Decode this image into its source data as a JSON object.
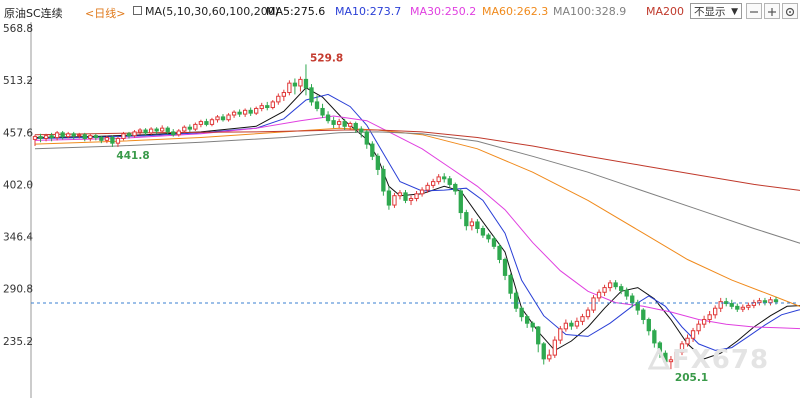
{
  "header": {
    "title": "原油SC连续",
    "period": "<日线>",
    "ma_params": "MA(5,10,30,60,100,200)",
    "ma_values": [
      {
        "label": "MA5:275.6",
        "color": "#111111"
      },
      {
        "label": "MA10:273.7",
        "color": "#2a3fd6"
      },
      {
        "label": "MA30:250.2",
        "color": "#e040e0"
      },
      {
        "label": "MA60:262.3",
        "color": "#f08a1c"
      },
      {
        "label": "MA100:328.9",
        "color": "#808080"
      },
      {
        "label": "MA200",
        "color": "#c0392b"
      }
    ],
    "hide_label": "不显示"
  },
  "watermark": "FX678",
  "chart_data": {
    "type": "candlestick",
    "y_ticks": [
      "568.8",
      "513.2",
      "457.6",
      "402.0",
      "346.4",
      "290.8",
      "235.2"
    ],
    "ylim": [
      179.6,
      568.8
    ],
    "annotations": [
      {
        "text": "529.8",
        "value": 529.8,
        "kind": "high"
      },
      {
        "text": "441.8",
        "value": 441.8,
        "kind": "low"
      },
      {
        "text": "205.1",
        "value": 205.1,
        "kind": "low"
      }
    ],
    "current_price_line": 275.6,
    "colors": {
      "up": "#e03a3a",
      "down": "#2fa84f",
      "axis": "#333333",
      "current_line": "#3a7fd0"
    },
    "candles": [
      [
        450,
        453,
        443,
        455
      ],
      [
        453,
        451,
        447,
        456
      ],
      [
        451,
        454,
        448,
        456
      ],
      [
        454,
        452,
        448,
        457
      ],
      [
        452,
        457,
        449,
        459
      ],
      [
        457,
        453,
        450,
        459
      ],
      [
        453,
        456,
        451,
        458
      ],
      [
        456,
        454,
        450,
        458
      ],
      [
        454,
        455,
        451,
        457
      ],
      [
        455,
        451,
        448,
        457
      ],
      [
        451,
        454,
        448,
        456
      ],
      [
        454,
        452,
        449,
        456
      ],
      [
        452,
        449,
        446,
        454
      ],
      [
        449,
        452,
        446,
        454
      ],
      [
        452,
        446,
        442,
        454
      ],
      [
        446,
        451,
        442,
        453
      ],
      [
        451,
        456,
        449,
        458
      ],
      [
        456,
        454,
        451,
        458
      ],
      [
        454,
        458,
        452,
        460
      ],
      [
        458,
        460,
        455,
        462
      ],
      [
        460,
        457,
        454,
        462
      ],
      [
        457,
        461,
        455,
        463
      ],
      [
        461,
        459,
        456,
        463
      ],
      [
        459,
        462,
        457,
        465
      ],
      [
        462,
        458,
        455,
        464
      ],
      [
        458,
        455,
        453,
        461
      ],
      [
        455,
        459,
        453,
        461
      ],
      [
        459,
        463,
        457,
        465
      ],
      [
        463,
        461,
        458,
        466
      ],
      [
        461,
        466,
        459,
        468
      ],
      [
        466,
        469,
        463,
        471
      ],
      [
        469,
        466,
        464,
        472
      ],
      [
        466,
        471,
        464,
        473
      ],
      [
        471,
        474,
        468,
        476
      ],
      [
        474,
        471,
        469,
        477
      ],
      [
        471,
        476,
        469,
        478
      ],
      [
        476,
        479,
        473,
        481
      ],
      [
        479,
        477,
        474,
        482
      ],
      [
        477,
        481,
        474,
        483
      ],
      [
        481,
        478,
        475,
        484
      ],
      [
        478,
        483,
        476,
        485
      ],
      [
        483,
        486,
        480,
        489
      ],
      [
        486,
        484,
        481,
        490
      ],
      [
        484,
        490,
        482,
        492
      ],
      [
        490,
        496,
        487,
        499
      ],
      [
        496,
        500,
        491,
        503
      ],
      [
        500,
        510,
        497,
        513
      ],
      [
        510,
        507,
        498,
        515
      ],
      [
        507,
        514,
        501,
        517
      ],
      [
        514,
        505,
        497,
        530
      ],
      [
        505,
        490,
        486,
        509
      ],
      [
        490,
        483,
        480,
        497
      ],
      [
        483,
        476,
        473,
        488
      ],
      [
        476,
        470,
        467,
        480
      ],
      [
        470,
        466,
        462,
        474
      ],
      [
        466,
        469,
        462,
        472
      ],
      [
        469,
        464,
        460,
        472
      ],
      [
        464,
        467,
        460,
        469
      ],
      [
        467,
        461,
        457,
        469
      ],
      [
        461,
        458,
        452,
        464
      ],
      [
        458,
        445,
        440,
        460
      ],
      [
        445,
        432,
        428,
        448
      ],
      [
        432,
        418,
        412,
        435
      ],
      [
        418,
        395,
        390,
        422
      ],
      [
        395,
        380,
        375,
        400
      ],
      [
        380,
        390,
        377,
        393
      ],
      [
        390,
        393,
        386,
        396
      ],
      [
        393,
        385,
        382,
        396
      ],
      [
        385,
        387,
        380,
        390
      ],
      [
        387,
        392,
        384,
        395
      ],
      [
        392,
        396,
        389,
        399
      ],
      [
        396,
        401,
        393,
        404
      ],
      [
        401,
        405,
        398,
        408
      ],
      [
        405,
        410,
        402,
        413
      ],
      [
        410,
        408,
        404,
        414
      ],
      [
        408,
        402,
        399,
        411
      ],
      [
        402,
        395,
        391,
        404
      ],
      [
        395,
        372,
        365,
        397
      ],
      [
        372,
        358,
        353,
        375
      ],
      [
        358,
        362,
        353,
        366
      ],
      [
        362,
        355,
        350,
        365
      ],
      [
        355,
        348,
        345,
        358
      ],
      [
        348,
        344,
        340,
        350
      ],
      [
        344,
        336,
        333,
        347
      ],
      [
        336,
        322,
        318,
        339
      ],
      [
        322,
        305,
        300,
        324
      ],
      [
        305,
        286,
        280,
        307
      ],
      [
        286,
        270,
        266,
        289
      ],
      [
        270,
        261,
        256,
        272
      ],
      [
        261,
        254,
        249,
        263
      ],
      [
        254,
        250,
        245,
        256
      ],
      [
        250,
        232,
        223,
        251
      ],
      [
        232,
        216,
        210,
        234
      ],
      [
        216,
        220,
        213,
        226
      ],
      [
        220,
        236,
        217,
        240
      ],
      [
        236,
        248,
        232,
        251
      ],
      [
        248,
        254,
        245,
        258
      ],
      [
        254,
        251,
        247,
        257
      ],
      [
        251,
        256,
        248,
        260
      ],
      [
        256,
        261,
        252,
        264
      ],
      [
        261,
        268,
        258,
        271
      ],
      [
        268,
        281,
        265,
        284
      ],
      [
        281,
        287,
        277,
        290
      ],
      [
        287,
        292,
        283,
        295
      ],
      [
        292,
        297,
        288,
        300
      ],
      [
        297,
        293,
        290,
        300
      ],
      [
        293,
        289,
        285,
        296
      ],
      [
        289,
        283,
        279,
        292
      ],
      [
        283,
        276,
        271,
        286
      ],
      [
        276,
        268,
        263,
        279
      ],
      [
        268,
        258,
        253,
        270
      ],
      [
        258,
        246,
        241,
        260
      ],
      [
        246,
        233,
        228,
        248
      ],
      [
        233,
        222,
        217,
        235
      ],
      [
        222,
        213,
        209,
        225
      ],
      [
        213,
        215,
        205,
        219
      ],
      [
        215,
        223,
        211,
        226
      ],
      [
        223,
        232,
        220,
        235
      ],
      [
        232,
        238,
        229,
        242
      ],
      [
        238,
        246,
        234,
        249
      ],
      [
        246,
        253,
        242,
        257
      ],
      [
        253,
        258,
        249,
        262
      ],
      [
        258,
        263,
        254,
        267
      ],
      [
        263,
        270,
        259,
        273
      ],
      [
        270,
        277,
        266,
        281
      ],
      [
        277,
        275,
        272,
        281
      ],
      [
        275,
        272,
        269,
        279
      ],
      [
        272,
        269,
        266,
        275
      ],
      [
        269,
        271,
        266,
        274
      ],
      [
        271,
        273,
        268,
        276
      ],
      [
        273,
        276,
        270,
        279
      ],
      [
        276,
        278,
        273,
        281
      ],
      [
        278,
        276,
        273,
        281
      ],
      [
        276,
        279,
        273,
        282
      ],
      [
        279,
        277,
        274,
        282
      ]
    ],
    "ma_lines": [
      {
        "name": "MA5",
        "color": "#111111",
        "points": [
          [
            0,
            452
          ],
          [
            10,
            453
          ],
          [
            20,
            455
          ],
          [
            30,
            458
          ],
          [
            40,
            464
          ],
          [
            45,
            480
          ],
          [
            49,
            505
          ],
          [
            52,
            495
          ],
          [
            56,
            470
          ],
          [
            60,
            450
          ],
          [
            62,
            430
          ],
          [
            64,
            400
          ],
          [
            66,
            390
          ],
          [
            70,
            392
          ],
          [
            74,
            400
          ],
          [
            77,
            395
          ],
          [
            80,
            370
          ],
          [
            85,
            330
          ],
          [
            88,
            270
          ],
          [
            91,
            245
          ],
          [
            94,
            225
          ],
          [
            97,
            235
          ],
          [
            100,
            250
          ],
          [
            103,
            270
          ],
          [
            106,
            288
          ],
          [
            109,
            292
          ],
          [
            112,
            280
          ],
          [
            115,
            258
          ],
          [
            118,
            232
          ],
          [
            121,
            216
          ],
          [
            124,
            222
          ],
          [
            127,
            235
          ],
          [
            130,
            250
          ],
          [
            133,
            262
          ],
          [
            136,
            272
          ],
          [
            139,
            273
          ],
          [
            144,
            276
          ]
        ]
      },
      {
        "name": "MA10",
        "color": "#2a3fd6",
        "points": [
          [
            0,
            451
          ],
          [
            10,
            452
          ],
          [
            20,
            454
          ],
          [
            30,
            457
          ],
          [
            40,
            462
          ],
          [
            45,
            472
          ],
          [
            49,
            492
          ],
          [
            53,
            498
          ],
          [
            57,
            485
          ],
          [
            60,
            465
          ],
          [
            63,
            435
          ],
          [
            66,
            405
          ],
          [
            70,
            395
          ],
          [
            74,
            396
          ],
          [
            78,
            398
          ],
          [
            81,
            385
          ],
          [
            85,
            350
          ],
          [
            88,
            300
          ],
          [
            92,
            262
          ],
          [
            96,
            242
          ],
          [
            100,
            240
          ],
          [
            104,
            254
          ],
          [
            108,
            272
          ],
          [
            111,
            283
          ],
          [
            114,
            272
          ],
          [
            117,
            250
          ],
          [
            120,
            232
          ],
          [
            123,
            225
          ],
          [
            126,
            228
          ],
          [
            129,
            240
          ],
          [
            132,
            252
          ],
          [
            135,
            263
          ],
          [
            138,
            268
          ],
          [
            141,
            271
          ],
          [
            144,
            274
          ]
        ]
      },
      {
        "name": "MA30",
        "color": "#e040e0",
        "points": [
          [
            0,
            449
          ],
          [
            15,
            451
          ],
          [
            30,
            456
          ],
          [
            40,
            462
          ],
          [
            48,
            470
          ],
          [
            54,
            475
          ],
          [
            60,
            470
          ],
          [
            65,
            455
          ],
          [
            70,
            440
          ],
          [
            75,
            420
          ],
          [
            80,
            400
          ],
          [
            85,
            375
          ],
          [
            90,
            340
          ],
          [
            95,
            310
          ],
          [
            100,
            288
          ],
          [
            105,
            276
          ],
          [
            110,
            272
          ],
          [
            115,
            266
          ],
          [
            120,
            258
          ],
          [
            125,
            253
          ],
          [
            130,
            250
          ],
          [
            135,
            249
          ],
          [
            140,
            248
          ],
          [
            144,
            250
          ]
        ]
      },
      {
        "name": "MA60",
        "color": "#f08a1c",
        "points": [
          [
            0,
            445
          ],
          [
            15,
            448
          ],
          [
            30,
            452
          ],
          [
            45,
            458
          ],
          [
            55,
            462
          ],
          [
            62,
            460
          ],
          [
            70,
            455
          ],
          [
            80,
            440
          ],
          [
            90,
            415
          ],
          [
            100,
            385
          ],
          [
            110,
            350
          ],
          [
            118,
            322
          ],
          [
            126,
            300
          ],
          [
            134,
            282
          ],
          [
            140,
            268
          ],
          [
            144,
            262
          ]
        ]
      },
      {
        "name": "MA100",
        "color": "#808080",
        "points": [
          [
            0,
            440
          ],
          [
            15,
            443
          ],
          [
            30,
            447
          ],
          [
            45,
            452
          ],
          [
            55,
            457
          ],
          [
            62,
            458
          ],
          [
            70,
            456
          ],
          [
            80,
            448
          ],
          [
            90,
            432
          ],
          [
            100,
            415
          ],
          [
            110,
            395
          ],
          [
            120,
            375
          ],
          [
            130,
            355
          ],
          [
            138,
            340
          ],
          [
            144,
            328.9
          ]
        ]
      },
      {
        "name": "MA200",
        "color": "#c0392b",
        "points": [
          [
            0,
            455
          ],
          [
            20,
            457
          ],
          [
            40,
            458
          ],
          [
            56,
            460
          ],
          [
            62,
            460
          ],
          [
            70,
            458
          ],
          [
            80,
            452
          ],
          [
            90,
            443
          ],
          [
            100,
            432
          ],
          [
            110,
            422
          ],
          [
            120,
            412
          ],
          [
            130,
            402
          ],
          [
            138,
            396
          ],
          [
            144,
            390
          ]
        ]
      }
    ]
  }
}
